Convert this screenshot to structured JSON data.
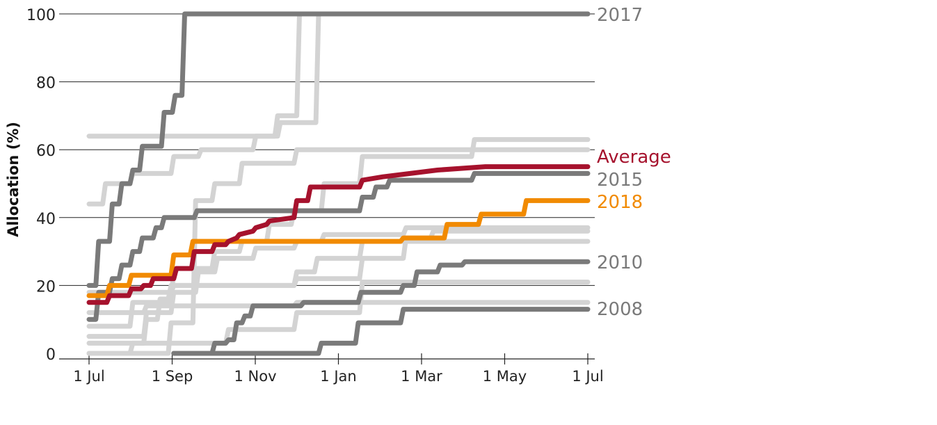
{
  "chart_data": {
    "type": "line",
    "title": "",
    "xlabel": "",
    "ylabel": "Allocation (%)",
    "ylim": [
      0,
      100
    ],
    "y_ticks": [
      "0",
      "20",
      "40",
      "60",
      "80",
      "100"
    ],
    "x_tick_labels": [
      "1 Jul",
      "1 Sep",
      "1 Nov",
      "1 Jan",
      "1 Mar",
      "1 May",
      "1 Jul"
    ],
    "grid": "horizontal",
    "line_style": "step",
    "colors": {
      "highlight": "#7a7a7a",
      "background": "#d3d3d3",
      "average": "#a6122d",
      "current": "#f18a00"
    },
    "labeled_series": [
      {
        "name": "2017",
        "color": "#7a7a7a",
        "points": [
          [
            0,
            20
          ],
          [
            5,
            20
          ],
          [
            7,
            33
          ],
          [
            15,
            33
          ],
          [
            17,
            44
          ],
          [
            22,
            44
          ],
          [
            24,
            50
          ],
          [
            30,
            50
          ],
          [
            32,
            54
          ],
          [
            37,
            54
          ],
          [
            39,
            61
          ],
          [
            53,
            61
          ],
          [
            55,
            71
          ],
          [
            61,
            71
          ],
          [
            63,
            76
          ],
          [
            68,
            76
          ],
          [
            70,
            100
          ],
          [
            365,
            100
          ]
        ]
      },
      {
        "name": "2015",
        "color": "#7a7a7a",
        "points": [
          [
            0,
            10
          ],
          [
            5,
            10
          ],
          [
            7,
            18
          ],
          [
            15,
            18
          ],
          [
            17,
            22
          ],
          [
            22,
            22
          ],
          [
            24,
            26
          ],
          [
            30,
            26
          ],
          [
            32,
            30
          ],
          [
            37,
            30
          ],
          [
            39,
            34
          ],
          [
            47,
            34
          ],
          [
            49,
            37
          ],
          [
            53,
            37
          ],
          [
            55,
            40
          ],
          [
            77,
            40
          ],
          [
            79,
            42
          ],
          [
            198,
            42
          ],
          [
            200,
            46
          ],
          [
            208,
            46
          ],
          [
            210,
            49
          ],
          [
            218,
            49
          ],
          [
            220,
            51
          ],
          [
            280,
            51
          ],
          [
            282,
            53
          ],
          [
            365,
            53
          ]
        ]
      },
      {
        "name": "2018",
        "color": "#f18a00",
        "points": [
          [
            0,
            17
          ],
          [
            13,
            17
          ],
          [
            15,
            20
          ],
          [
            29,
            20
          ],
          [
            31,
            23
          ],
          [
            60,
            23
          ],
          [
            62,
            29
          ],
          [
            74,
            29
          ],
          [
            76,
            33
          ],
          [
            228,
            33
          ],
          [
            230,
            34
          ],
          [
            260,
            34
          ],
          [
            262,
            38
          ],
          [
            285,
            38
          ],
          [
            287,
            41
          ],
          [
            318,
            41
          ],
          [
            320,
            45
          ],
          [
            365,
            45
          ]
        ]
      },
      {
        "name": "2010",
        "color": "#7a7a7a",
        "points": [
          [
            62,
            0
          ],
          [
            90,
            0
          ],
          [
            92,
            3
          ],
          [
            100,
            3
          ],
          [
            102,
            4
          ],
          [
            106,
            4
          ],
          [
            108,
            9
          ],
          [
            112,
            9
          ],
          [
            114,
            11
          ],
          [
            118,
            11
          ],
          [
            120,
            14
          ],
          [
            155,
            14
          ],
          [
            157,
            15
          ],
          [
            197,
            15
          ],
          [
            199,
            18
          ],
          [
            228,
            18
          ],
          [
            230,
            20
          ],
          [
            238,
            20
          ],
          [
            240,
            24
          ],
          [
            255,
            24
          ],
          [
            257,
            26
          ],
          [
            273,
            26
          ],
          [
            275,
            27
          ],
          [
            365,
            27
          ]
        ]
      },
      {
        "name": "2008",
        "color": "#7a7a7a",
        "points": [
          [
            62,
            0
          ],
          [
            168,
            0
          ],
          [
            170,
            3
          ],
          [
            195,
            3
          ],
          [
            197,
            9
          ],
          [
            228,
            9
          ],
          [
            230,
            13
          ],
          [
            365,
            13
          ]
        ]
      },
      {
        "name": "Average",
        "color": "#a6122d",
        "points": [
          [
            0,
            15
          ],
          [
            13,
            15
          ],
          [
            15,
            17
          ],
          [
            29,
            17
          ],
          [
            31,
            19
          ],
          [
            38,
            19
          ],
          [
            40,
            20
          ],
          [
            45,
            20
          ],
          [
            47,
            22
          ],
          [
            62,
            22
          ],
          [
            64,
            25
          ],
          [
            75,
            25
          ],
          [
            77,
            30
          ],
          [
            90,
            30
          ],
          [
            92,
            32
          ],
          [
            100,
            32
          ],
          [
            102,
            33
          ],
          [
            108,
            34
          ],
          [
            110,
            35
          ],
          [
            120,
            36
          ],
          [
            122,
            37
          ],
          [
            130,
            38
          ],
          [
            132,
            39
          ],
          [
            150,
            40
          ],
          [
            152,
            45
          ],
          [
            160,
            45
          ],
          [
            162,
            49
          ],
          [
            165,
            49
          ],
          [
            198,
            49
          ],
          [
            200,
            51
          ],
          [
            215,
            52
          ],
          [
            235,
            53
          ],
          [
            255,
            54
          ],
          [
            290,
            55
          ],
          [
            365,
            55
          ]
        ]
      }
    ],
    "other_years_series": [
      {
        "points": [
          [
            0,
            64
          ],
          [
            136,
            64
          ],
          [
            138,
            70
          ],
          [
            152,
            70
          ],
          [
            154,
            100
          ],
          [
            365,
            100
          ]
        ]
      },
      {
        "points": [
          [
            0,
            44
          ],
          [
            10,
            44
          ],
          [
            12,
            50
          ],
          [
            30,
            50
          ],
          [
            32,
            53
          ],
          [
            60,
            53
          ],
          [
            62,
            58
          ],
          [
            80,
            58
          ],
          [
            82,
            60
          ],
          [
            120,
            60
          ],
          [
            122,
            64
          ],
          [
            138,
            64
          ],
          [
            140,
            68
          ],
          [
            166,
            68
          ],
          [
            168,
            100
          ],
          [
            365,
            100
          ]
        ]
      },
      {
        "points": [
          [
            0,
            8
          ],
          [
            30,
            8
          ],
          [
            32,
            15
          ],
          [
            60,
            15
          ],
          [
            62,
            25
          ],
          [
            90,
            25
          ],
          [
            92,
            30
          ],
          [
            110,
            30
          ],
          [
            112,
            33
          ],
          [
            130,
            33
          ],
          [
            132,
            38
          ],
          [
            148,
            38
          ],
          [
            150,
            42
          ],
          [
            170,
            42
          ],
          [
            172,
            50
          ],
          [
            198,
            50
          ],
          [
            200,
            58
          ],
          [
            280,
            58
          ],
          [
            282,
            63
          ],
          [
            365,
            63
          ]
        ]
      },
      {
        "points": [
          [
            0,
            5
          ],
          [
            40,
            5
          ],
          [
            42,
            12
          ],
          [
            60,
            12
          ],
          [
            62,
            18
          ],
          [
            78,
            18
          ],
          [
            80,
            24
          ],
          [
            92,
            24
          ],
          [
            94,
            28
          ],
          [
            120,
            28
          ],
          [
            122,
            31
          ],
          [
            150,
            31
          ],
          [
            152,
            33
          ],
          [
            170,
            33
          ],
          [
            172,
            35
          ],
          [
            230,
            35
          ],
          [
            232,
            37
          ],
          [
            365,
            37
          ]
        ]
      },
      {
        "points": [
          [
            0,
            18
          ],
          [
            60,
            18
          ],
          [
            62,
            20
          ],
          [
            150,
            20
          ],
          [
            152,
            22
          ],
          [
            198,
            22
          ],
          [
            200,
            28
          ],
          [
            230,
            28
          ],
          [
            232,
            34
          ],
          [
            250,
            34
          ],
          [
            252,
            36
          ],
          [
            365,
            36
          ]
        ]
      },
      {
        "points": [
          [
            0,
            12
          ],
          [
            40,
            12
          ],
          [
            42,
            14
          ],
          [
            150,
            14
          ],
          [
            152,
            15
          ],
          [
            365,
            15
          ]
        ]
      },
      {
        "points": [
          [
            0,
            0
          ],
          [
            58,
            0
          ],
          [
            60,
            9
          ],
          [
            76,
            9
          ],
          [
            78,
            45
          ],
          [
            90,
            45
          ],
          [
            92,
            50
          ],
          [
            110,
            50
          ],
          [
            112,
            56
          ],
          [
            150,
            56
          ],
          [
            152,
            60
          ],
          [
            365,
            60
          ]
        ]
      },
      {
        "points": [
          [
            0,
            3
          ],
          [
            100,
            3
          ],
          [
            102,
            7
          ],
          [
            150,
            7
          ],
          [
            152,
            12
          ],
          [
            198,
            12
          ],
          [
            200,
            21
          ],
          [
            365,
            21
          ]
        ]
      },
      {
        "points": [
          [
            0,
            0
          ],
          [
            30,
            0
          ],
          [
            32,
            3
          ],
          [
            40,
            3
          ],
          [
            42,
            10
          ],
          [
            50,
            10
          ],
          [
            52,
            16
          ],
          [
            58,
            16
          ],
          [
            60,
            20
          ],
          [
            150,
            20
          ],
          [
            152,
            24
          ],
          [
            165,
            24
          ],
          [
            167,
            28
          ],
          [
            198,
            28
          ],
          [
            200,
            33
          ],
          [
            365,
            33
          ]
        ]
      }
    ]
  }
}
